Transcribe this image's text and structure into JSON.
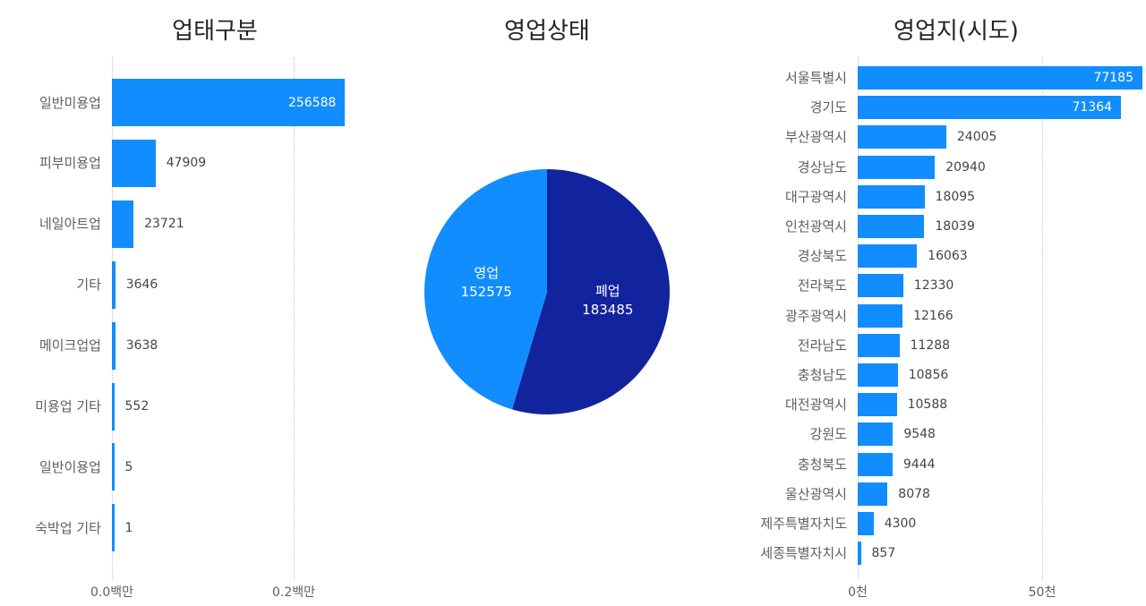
{
  "chart_data": [
    {
      "type": "bar",
      "orientation": "horizontal",
      "title": "업태구분",
      "categories": [
        "일반미용업",
        "피부미용업",
        "네일아트업",
        "기타",
        "메이크업업",
        "미용업 기타",
        "일반이용업",
        "숙박업 기타"
      ],
      "values": [
        256588,
        47909,
        23721,
        3646,
        3638,
        552,
        5,
        1
      ],
      "value_labels": [
        "256588",
        "47909",
        "23721",
        "3646",
        "3638",
        "552",
        "5",
        "1"
      ],
      "xlabel": "",
      "ylabel": "",
      "xticks": [
        "0.0백만",
        "0.2백만"
      ],
      "xtick_values": [
        0,
        200000
      ],
      "xlim": [
        0,
        256588
      ],
      "grid": true,
      "color": "#118DFF"
    },
    {
      "type": "pie",
      "title": "영업상태",
      "categories": [
        "폐업",
        "영업"
      ],
      "values": [
        183485,
        152575
      ],
      "value_labels": [
        "183485",
        "152575"
      ],
      "colors": [
        "#12239E",
        "#118DFF"
      ]
    },
    {
      "type": "bar",
      "orientation": "horizontal",
      "title": "영업지(시도)",
      "categories": [
        "서울특별시",
        "경기도",
        "부산광역시",
        "경상남도",
        "대구광역시",
        "인천광역시",
        "경상북도",
        "전라북도",
        "광주광역시",
        "전라남도",
        "충청남도",
        "대전광역시",
        "강원도",
        "충청북도",
        "울산광역시",
        "제주특별자치도",
        "세종특별자치시"
      ],
      "values": [
        77185,
        71364,
        24005,
        20940,
        18095,
        18039,
        16063,
        12330,
        12166,
        11288,
        10856,
        10588,
        9548,
        9444,
        8078,
        4300,
        857
      ],
      "value_labels": [
        "77185",
        "71364",
        "24005",
        "20940",
        "18095",
        "18039",
        "16063",
        "12330",
        "12166",
        "11288",
        "10856",
        "10588",
        "9548",
        "9444",
        "8078",
        "4300",
        "857"
      ],
      "xlabel": "",
      "ylabel": "",
      "xticks": [
        "0천",
        "50천"
      ],
      "xtick_values": [
        0,
        50000
      ],
      "xlim": [
        0,
        77185
      ],
      "grid": true,
      "color": "#118DFF"
    }
  ]
}
